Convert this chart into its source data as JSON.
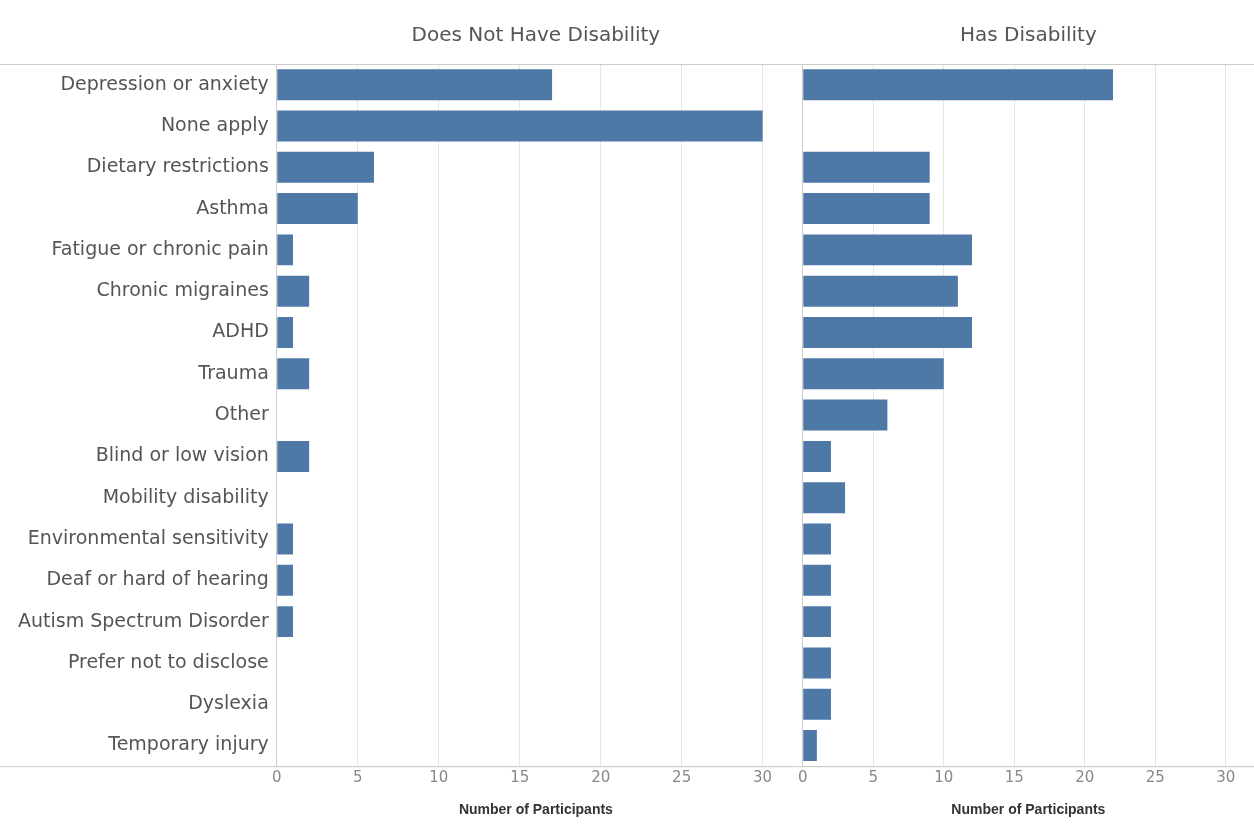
{
  "chart_data": [
    {
      "type": "bar",
      "orientation": "horizontal",
      "title": "Does Not Have Disability",
      "xlabel": "Number of Participants",
      "categories": [
        "Depression or anxiety",
        "None apply",
        "Dietary restrictions",
        "Asthma",
        "Fatigue or chronic pain",
        "Chronic migraines",
        "ADHD",
        "Trauma",
        "Other",
        "Blind or low vision",
        "Mobility disability",
        "Environmental sensitivity",
        "Deaf or hard of hearing",
        "Autism Spectrum Disorder",
        "Prefer not to disclose",
        "Dyslexia",
        "Temporary injury"
      ],
      "values": [
        17,
        30,
        6,
        5,
        1,
        2,
        1,
        2,
        null,
        2,
        null,
        1,
        1,
        1,
        null,
        null,
        null
      ],
      "color": "#4e79a7",
      "xlim": [
        0,
        32
      ],
      "xticks": [
        0,
        5,
        10,
        15,
        20,
        25,
        30
      ],
      "grid": "x",
      "legend": false
    },
    {
      "type": "bar",
      "orientation": "horizontal",
      "title": "Has Disability",
      "xlabel": "Number of Participants",
      "categories": [
        null,
        null,
        null,
        null,
        null,
        null,
        null,
        null,
        null,
        null,
        null,
        null,
        null,
        null,
        null,
        null,
        null
      ],
      "values": [
        22,
        null,
        9,
        9,
        12,
        11,
        12,
        10,
        6,
        2,
        3,
        2,
        2,
        2,
        2,
        2,
        1
      ],
      "color": "#4e79a7",
      "xlim": [
        0,
        32
      ],
      "xticks": [
        0,
        5,
        10,
        15,
        20,
        25,
        30
      ],
      "grid": "x",
      "legend": false,
      "tick_labels": "x"
    }
  ]
}
